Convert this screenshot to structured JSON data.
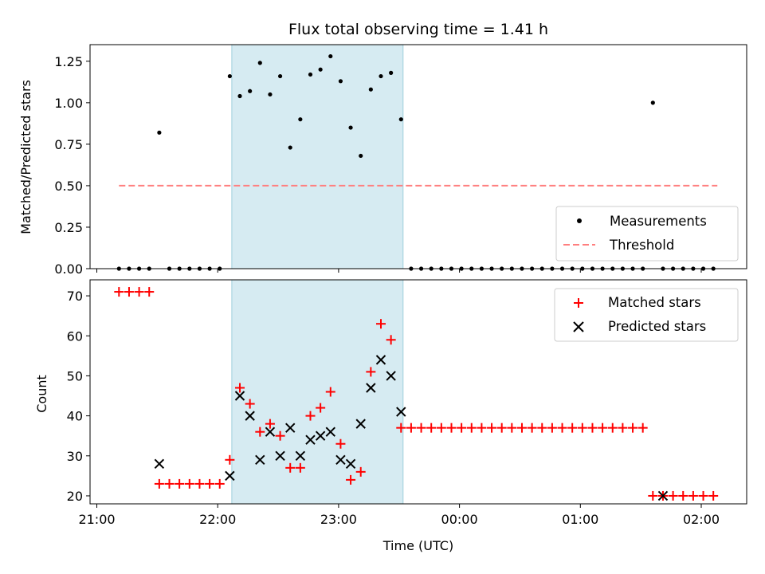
{
  "chart_data": [
    {
      "type": "scatter",
      "title": "Flux total observing time = 1.41 h",
      "ylabel": "Matched/Predicted stars",
      "xlabel": "",
      "ylim": [
        0,
        1.35
      ],
      "yticks": [
        0.0,
        0.25,
        0.5,
        0.75,
        1.0,
        1.25
      ],
      "ytick_labels": [
        "0.00",
        "0.25",
        "0.50",
        "0.75",
        "1.00",
        "1.25"
      ],
      "shaded_interval": [
        "22:07",
        "23:32"
      ],
      "shade_color": "#add8e6",
      "threshold": {
        "name": "Threshold",
        "value": 0.5,
        "x_start": "21:11",
        "x_end": "02:08",
        "color": "#ff7f7f"
      },
      "legend": {
        "placement": "lower right",
        "entries": [
          "Measurements",
          "Threshold"
        ]
      },
      "series": [
        {
          "name": "Measurements",
          "color": "#000000",
          "x": [
            "21:11",
            "21:16",
            "21:21",
            "21:26",
            "21:31",
            "21:36",
            "21:41",
            "21:46",
            "21:51",
            "21:56",
            "22:01",
            "22:06",
            "22:11",
            "22:16",
            "22:21",
            "22:26",
            "22:31",
            "22:36",
            "22:41",
            "22:46",
            "22:51",
            "22:56",
            "23:01",
            "23:06",
            "23:11",
            "23:16",
            "23:21",
            "23:26",
            "23:31",
            "23:36",
            "23:41",
            "23:46",
            "23:51",
            "23:56",
            "00:01",
            "00:06",
            "00:11",
            "00:16",
            "00:21",
            "00:26",
            "00:31",
            "00:36",
            "00:41",
            "00:46",
            "00:51",
            "00:56",
            "01:01",
            "01:06",
            "01:11",
            "01:16",
            "01:21",
            "01:26",
            "01:31",
            "01:36",
            "01:41",
            "01:46",
            "01:51",
            "01:56",
            "02:01",
            "02:06"
          ],
          "y": [
            0,
            0,
            0,
            0,
            0.82,
            0,
            0,
            0,
            0,
            0,
            0,
            1.16,
            1.04,
            1.07,
            1.24,
            1.05,
            1.16,
            0.73,
            0.9,
            1.17,
            1.2,
            1.28,
            1.13,
            0.85,
            0.68,
            1.08,
            1.16,
            1.18,
            0.9,
            0,
            0,
            0,
            0,
            0,
            0,
            0,
            0,
            0,
            0,
            0,
            0,
            0,
            0,
            0,
            0,
            0,
            0,
            0,
            0,
            0,
            0,
            0,
            0,
            1.0,
            0,
            0,
            0,
            0,
            0,
            0
          ]
        }
      ]
    },
    {
      "type": "scatter",
      "title": "",
      "ylabel": "Count",
      "xlabel": "Time (UTC)",
      "ylim": [
        18,
        74
      ],
      "yticks": [
        20,
        30,
        40,
        50,
        60,
        70
      ],
      "ytick_labels": [
        "20",
        "30",
        "40",
        "50",
        "60",
        "70"
      ],
      "xticks": [
        "21:00",
        "22:00",
        "23:00",
        "00:00",
        "01:00",
        "02:00"
      ],
      "shaded_interval": [
        "22:07",
        "23:32"
      ],
      "shade_color": "#add8e6",
      "legend": {
        "placement": "upper right",
        "entries": [
          "Matched stars",
          "Predicted stars"
        ]
      },
      "series": [
        {
          "name": "Matched stars",
          "marker": "plus",
          "color": "#ff0000",
          "x": [
            "21:11",
            "21:16",
            "21:21",
            "21:26",
            "21:31",
            "21:36",
            "21:41",
            "21:46",
            "21:51",
            "21:56",
            "22:01",
            "22:06",
            "22:11",
            "22:16",
            "22:21",
            "22:26",
            "22:31",
            "22:36",
            "22:41",
            "22:46",
            "22:51",
            "22:56",
            "23:01",
            "23:06",
            "23:11",
            "23:16",
            "23:21",
            "23:26",
            "23:31",
            "23:36",
            "23:41",
            "23:46",
            "23:51",
            "23:56",
            "00:01",
            "00:06",
            "00:11",
            "00:16",
            "00:21",
            "00:26",
            "00:31",
            "00:36",
            "00:41",
            "00:46",
            "00:51",
            "00:56",
            "01:01",
            "01:06",
            "01:11",
            "01:16",
            "01:21",
            "01:26",
            "01:31",
            "01:36",
            "01:41",
            "01:46",
            "01:51",
            "01:56",
            "02:01",
            "02:06"
          ],
          "y": [
            71,
            71,
            71,
            71,
            23,
            23,
            23,
            23,
            23,
            23,
            23,
            29,
            47,
            43,
            36,
            38,
            35,
            27,
            27,
            40,
            42,
            46,
            33,
            24,
            26,
            51,
            63,
            59,
            37,
            37,
            37,
            37,
            37,
            37,
            37,
            37,
            37,
            37,
            37,
            37,
            37,
            37,
            37,
            37,
            37,
            37,
            37,
            37,
            37,
            37,
            37,
            37,
            37,
            20,
            20,
            20,
            20,
            20,
            20,
            20
          ]
        },
        {
          "name": "Predicted stars",
          "marker": "x",
          "color": "#000000",
          "x": [
            "21:31",
            "22:06",
            "22:11",
            "22:16",
            "22:21",
            "22:26",
            "22:31",
            "22:36",
            "22:41",
            "22:46",
            "22:51",
            "22:56",
            "23:01",
            "23:06",
            "23:11",
            "23:16",
            "23:21",
            "23:26",
            "23:31",
            "01:41"
          ],
          "y": [
            28,
            25,
            45,
            40,
            29,
            36,
            30,
            37,
            30,
            34,
            35,
            36,
            29,
            28,
            38,
            47,
            54,
            50,
            41,
            20
          ]
        }
      ]
    }
  ]
}
